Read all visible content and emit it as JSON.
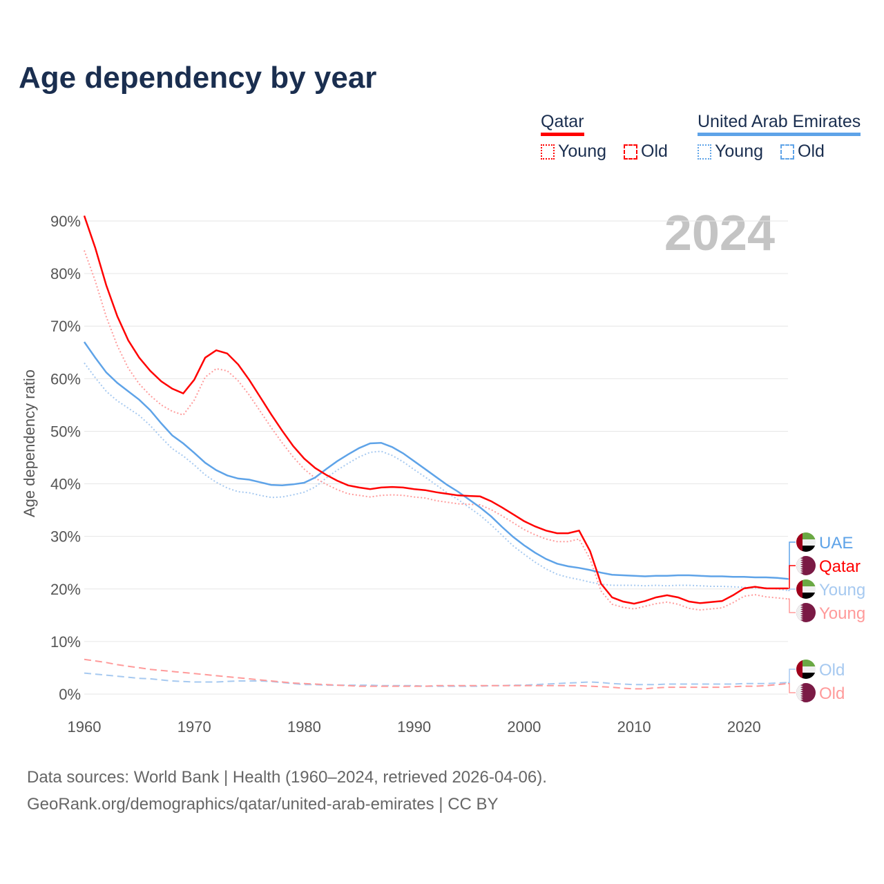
{
  "title": "Age dependency by year",
  "legend": {
    "qatar": {
      "label": "Qatar",
      "young": "Young",
      "old": "Old"
    },
    "uae": {
      "label": "United Arab Emirates",
      "young": "Young",
      "old": "Old"
    }
  },
  "footer": {
    "line1": "Data sources: World Bank | Health (1960–2024, retrieved 2026-04-06).",
    "line2": "GeoRank.org/demographics/qatar/united-arab-emirates | CC BY"
  },
  "colors": {
    "qatar": "#ff0000",
    "qatar_light": "#ff9a9a",
    "uae": "#5ea3e8",
    "uae_light": "#a6c9f0",
    "title": "#1a2e4f"
  },
  "chart_data": {
    "type": "line",
    "year_label": "2024",
    "ylabel": "Age dependency ratio",
    "xlim": [
      1960,
      2024
    ],
    "ylim": [
      0,
      90
    ],
    "x_ticks": [
      "1960",
      "1970",
      "1980",
      "1990",
      "2000",
      "2010",
      "2020"
    ],
    "y_ticks": [
      "0%",
      "10%",
      "20%",
      "30%",
      "40%",
      "50%",
      "60%",
      "70%",
      "80%",
      "90%"
    ],
    "grid": true,
    "start_year": 1960,
    "series": [
      {
        "name": "Qatar",
        "end_label": "Qatar",
        "country": "qatar",
        "style": "solid",
        "color": "#ff0000",
        "values": [
          91,
          84.9,
          77.8,
          71.9,
          67.3,
          64,
          61.5,
          59.5,
          58.1,
          57.2,
          59.8,
          64,
          65.4,
          64.8,
          62.7,
          59.8,
          56.5,
          53.2,
          50.1,
          47.2,
          44.8,
          43,
          41.7,
          40.6,
          39.7,
          39.3,
          39,
          39.3,
          39.4,
          39.3,
          39,
          38.8,
          38.4,
          38.1,
          37.8,
          37.7,
          37.6,
          36.7,
          35.5,
          34.2,
          32.9,
          31.9,
          31.1,
          30.6,
          30.6,
          31.1,
          27.2,
          21,
          18.4,
          17.6,
          17.2,
          17.7,
          18.4,
          18.8,
          18.4,
          17.6,
          17.3,
          17.5,
          17.7,
          18.8,
          20.1,
          20.4,
          20.1,
          20.1,
          20.1
        ]
      },
      {
        "name": "Qatar Young",
        "end_label": "Young",
        "country": "qatar",
        "style": "dotted",
        "color": "#ff9a9a",
        "values": [
          84.4,
          78.6,
          71.8,
          66.3,
          62,
          59,
          56.8,
          55,
          53.8,
          53.1,
          55.9,
          60.3,
          61.9,
          61.5,
          59.6,
          56.9,
          53.8,
          50.7,
          47.8,
          45.1,
          42.8,
          41.1,
          39.9,
          38.9,
          38.1,
          37.8,
          37.5,
          37.8,
          37.9,
          37.8,
          37.5,
          37.3,
          36.8,
          36.5,
          36.2,
          36.1,
          36,
          35.1,
          33.9,
          32.6,
          31.3,
          30.3,
          29.5,
          29,
          29,
          29.5,
          25.7,
          19.6,
          17.1,
          16.5,
          16.2,
          16.7,
          17.2,
          17.5,
          17.1,
          16.3,
          16,
          16.2,
          16.4,
          17.4,
          18.6,
          18.9,
          18.5,
          18.3,
          18.1
        ]
      },
      {
        "name": "Qatar Old",
        "end_label": "Old",
        "country": "qatar",
        "style": "dashed",
        "color": "#ff9a9a",
        "values": [
          6.6,
          6.3,
          6,
          5.6,
          5.3,
          5,
          4.7,
          4.5,
          4.3,
          4.1,
          3.9,
          3.7,
          3.5,
          3.3,
          3.1,
          2.9,
          2.7,
          2.5,
          2.3,
          2.1,
          2,
          1.9,
          1.8,
          1.7,
          1.6,
          1.5,
          1.5,
          1.5,
          1.5,
          1.5,
          1.5,
          1.5,
          1.6,
          1.6,
          1.6,
          1.6,
          1.6,
          1.6,
          1.6,
          1.6,
          1.6,
          1.6,
          1.6,
          1.6,
          1.6,
          1.6,
          1.5,
          1.4,
          1.3,
          1.1,
          1,
          1,
          1.2,
          1.3,
          1.3,
          1.3,
          1.3,
          1.3,
          1.3,
          1.4,
          1.5,
          1.5,
          1.6,
          1.8,
          2
        ]
      },
      {
        "name": "UAE",
        "end_label": "UAE",
        "country": "uae",
        "style": "solid",
        "color": "#5ea3e8",
        "values": [
          67,
          64,
          61.2,
          59.2,
          57.6,
          56,
          54,
          51.5,
          49.2,
          47.7,
          45.9,
          44,
          42.6,
          41.6,
          41,
          40.8,
          40.3,
          39.8,
          39.7,
          39.9,
          40.2,
          41.2,
          42.8,
          44.3,
          45.6,
          46.8,
          47.7,
          47.8,
          47,
          45.8,
          44.3,
          42.8,
          41.3,
          39.8,
          38.5,
          37,
          35.5,
          33.8,
          31.8,
          29.9,
          28.3,
          26.9,
          25.7,
          24.8,
          24.3,
          24,
          23.6,
          23.1,
          22.7,
          22.6,
          22.5,
          22.4,
          22.5,
          22.5,
          22.6,
          22.6,
          22.5,
          22.4,
          22.4,
          22.3,
          22.3,
          22.2,
          22.2,
          22.1,
          21.9
        ]
      },
      {
        "name": "UAE Young",
        "end_label": "Young",
        "country": "uae",
        "style": "dotted",
        "color": "#a6c9f0",
        "values": [
          63,
          60.2,
          57.6,
          55.8,
          54.4,
          53,
          51.1,
          48.8,
          46.7,
          45.3,
          43.6,
          41.7,
          40.3,
          39.2,
          38.5,
          38.3,
          37.8,
          37.4,
          37.5,
          37.9,
          38.4,
          39.4,
          41.1,
          42.6,
          43.9,
          45.1,
          46,
          46.2,
          45.4,
          44.2,
          42.7,
          41.3,
          39.8,
          38.3,
          37,
          35.5,
          34,
          32.2,
          30.2,
          28.2,
          26.6,
          25.1,
          23.8,
          22.8,
          22.2,
          21.8,
          21.3,
          20.9,
          20.7,
          20.7,
          20.7,
          20.6,
          20.7,
          20.6,
          20.7,
          20.7,
          20.6,
          20.5,
          20.5,
          20.4,
          20.3,
          20.2,
          20.2,
          20,
          19.7
        ]
      },
      {
        "name": "UAE Old",
        "end_label": "Old",
        "country": "uae",
        "style": "dashed",
        "color": "#a6c9f0",
        "values": [
          4,
          3.8,
          3.6,
          3.4,
          3.2,
          3,
          2.9,
          2.7,
          2.5,
          2.4,
          2.3,
          2.3,
          2.3,
          2.4,
          2.5,
          2.5,
          2.5,
          2.4,
          2.2,
          2,
          1.8,
          1.8,
          1.7,
          1.7,
          1.7,
          1.7,
          1.7,
          1.6,
          1.6,
          1.6,
          1.6,
          1.5,
          1.5,
          1.5,
          1.5,
          1.5,
          1.5,
          1.6,
          1.6,
          1.7,
          1.7,
          1.8,
          1.9,
          2,
          2.1,
          2.2,
          2.3,
          2.2,
          2,
          1.9,
          1.8,
          1.8,
          1.8,
          1.9,
          1.9,
          1.9,
          1.9,
          1.9,
          1.9,
          1.9,
          2,
          2,
          2,
          2.1,
          2.2
        ]
      }
    ]
  }
}
